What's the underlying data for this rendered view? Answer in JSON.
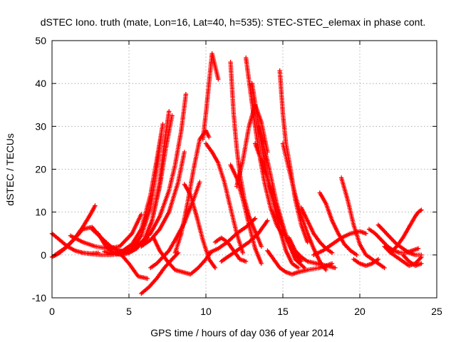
{
  "chart_data": {
    "type": "scatter",
    "title": "dSTEC Iono. truth (mate, Lon=16, Lat=40, h=535): STEC-STEC_elemax in phase cont.",
    "xlabel": "GPS time / hours of day 036 of year 2014",
    "ylabel": "dSTEC  / TECUs",
    "xlim": [
      0,
      25
    ],
    "ylim": [
      -10,
      50
    ],
    "x_ticks": [
      "0",
      "5",
      "10",
      "15",
      "20",
      "25"
    ],
    "y_ticks": [
      "-10",
      "0",
      "10",
      "20",
      "30",
      "40",
      "50"
    ],
    "grid": true,
    "marker": "+",
    "color": "#ff0000",
    "arcs": [
      {
        "x": [
          0.0,
          0.5,
          1.0,
          1.5,
          2.0,
          2.5,
          2.8
        ],
        "y": [
          -0.5,
          0.5,
          2.0,
          4.0,
          6.5,
          9.5,
          11.5
        ]
      },
      {
        "x": [
          0.0,
          0.5,
          1.0,
          1.5,
          2.0,
          2.5,
          3.0
        ],
        "y": [
          5.0,
          3.5,
          2.0,
          1.0,
          0.5,
          0.3,
          0.5
        ]
      },
      {
        "x": [
          0.2,
          0.8,
          1.4,
          2.0,
          2.6,
          3.2,
          3.8,
          4.4,
          5.0
        ],
        "y": [
          0.0,
          1.5,
          3.5,
          6.0,
          6.5,
          4.0,
          2.0,
          1.0,
          0.5
        ]
      },
      {
        "x": [
          2.6,
          3.2,
          3.8,
          4.4,
          5.0,
          5.6,
          6.2
        ],
        "y": [
          6.0,
          4.0,
          2.0,
          0.5,
          -2.0,
          -5.0,
          -5.5
        ]
      },
      {
        "x": [
          1.2,
          2.0,
          2.8,
          3.6,
          4.4,
          5.2,
          5.8
        ],
        "y": [
          4.5,
          3.0,
          2.0,
          1.5,
          2.0,
          5.0,
          9.5
        ]
      },
      {
        "x": [
          3.0,
          3.5,
          4.0,
          4.5,
          5.0,
          5.5,
          6.0,
          6.5,
          7.0,
          7.3,
          7.6
        ],
        "y": [
          5.0,
          2.0,
          0.5,
          0.0,
          0.5,
          1.5,
          3.5,
          8.0,
          17.0,
          26.0,
          33.5
        ]
      },
      {
        "x": [
          4.0,
          4.6,
          5.2,
          5.8,
          6.4,
          6.8,
          7.2
        ],
        "y": [
          0.5,
          1.0,
          2.5,
          6.0,
          14.0,
          22.0,
          30.5
        ]
      },
      {
        "x": [
          3.4,
          4.0,
          4.6,
          5.2,
          5.8,
          6.4,
          6.8,
          7.1
        ],
        "y": [
          0.8,
          0.2,
          0.5,
          1.5,
          4.5,
          11.0,
          20.0,
          28.0
        ]
      },
      {
        "x": [
          5.0,
          5.5,
          6.0,
          6.5,
          7.0,
          7.4,
          7.8
        ],
        "y": [
          0.5,
          1.5,
          3.5,
          8.0,
          16.0,
          25.0,
          32.5
        ]
      },
      {
        "x": [
          5.2,
          5.8,
          6.4,
          7.0,
          7.6,
          8.0,
          8.4,
          8.7
        ],
        "y": [
          2.0,
          3.0,
          5.0,
          9.0,
          15.0,
          21.0,
          29.0,
          37.5
        ]
      },
      {
        "x": [
          5.8,
          6.3,
          6.8,
          7.3,
          7.8,
          8.2
        ],
        "y": [
          -9.0,
          -7.5,
          -5.5,
          -3.0,
          -1.0,
          0.5
        ]
      },
      {
        "x": [
          5.8,
          6.4,
          7.0,
          7.6,
          8.2,
          8.6
        ],
        "y": [
          2.0,
          3.5,
          6.0,
          10.0,
          17.0,
          24.0
        ]
      },
      {
        "x": [
          6.6,
          7.0,
          7.5,
          8.0,
          8.5,
          9.0,
          9.5,
          10.0,
          10.3
        ],
        "y": [
          4.0,
          1.0,
          -1.5,
          -3.5,
          -4.0,
          -4.5,
          -3.0,
          -1.0,
          0.5
        ]
      },
      {
        "x": [
          8.0,
          8.4,
          8.8,
          9.2,
          9.6,
          10.0,
          10.2
        ],
        "y": [
          0.5,
          5.0,
          12.0,
          20.0,
          27.0,
          29.0,
          27.5
        ]
      },
      {
        "x": [
          8.6,
          9.0,
          9.4,
          9.8,
          10.2,
          10.6
        ],
        "y": [
          16.5,
          14.0,
          9.0,
          3.5,
          -1.0,
          -3.0
        ]
      },
      {
        "x": [
          9.8,
          10.0,
          10.2,
          10.4,
          10.6,
          10.8
        ],
        "y": [
          27.0,
          33.0,
          40.0,
          47.0,
          44.0,
          41.0
        ]
      },
      {
        "x": [
          10.0,
          10.4,
          10.8,
          11.2,
          11.6,
          12.0,
          12.4
        ],
        "y": [
          26.0,
          24.0,
          21.5,
          17.0,
          11.0,
          5.0,
          0.5
        ]
      },
      {
        "x": [
          10.2,
          10.8,
          11.4,
          12.0,
          12.6,
          13.2
        ],
        "y": [
          0.5,
          1.5,
          3.0,
          5.0,
          6.5,
          8.5
        ]
      },
      {
        "x": [
          10.6,
          11.0,
          11.4,
          11.8,
          12.2,
          12.6
        ],
        "y": [
          3.0,
          4.0,
          3.0,
          1.0,
          -1.0,
          -1.5
        ]
      },
      {
        "x": [
          11.6,
          11.8,
          12.0,
          12.2,
          12.5,
          12.8,
          13.2,
          13.6
        ],
        "y": [
          45.0,
          33.0,
          25.0,
          19.0,
          13.0,
          9.0,
          5.5,
          2.0
        ]
      },
      {
        "x": [
          11.6,
          12.0,
          12.4,
          12.8,
          13.2,
          13.6
        ],
        "y": [
          21.0,
          18.0,
          13.0,
          7.0,
          1.5,
          -2.0
        ]
      },
      {
        "x": [
          11.0,
          11.6,
          12.2,
          12.8,
          13.4,
          14.0
        ],
        "y": [
          -1.5,
          0.0,
          1.5,
          3.0,
          5.0,
          8.0
        ]
      },
      {
        "x": [
          12.6,
          12.9,
          13.2,
          13.5,
          13.8,
          14.2,
          14.6,
          15.0
        ],
        "y": [
          46.0,
          38.0,
          30.0,
          23.0,
          17.0,
          11.0,
          7.0,
          4.5
        ]
      },
      {
        "x": [
          12.0,
          12.4,
          12.8,
          13.2,
          13.6,
          14.0
        ],
        "y": [
          16.0,
          22.0,
          30.0,
          35.0,
          31.0,
          24.0
        ]
      },
      {
        "x": [
          13.0,
          13.3,
          13.6,
          14.0,
          14.4,
          14.8,
          15.2,
          15.6,
          16.0
        ],
        "y": [
          40.0,
          33.0,
          26.0,
          18.0,
          12.0,
          6.0,
          1.0,
          -2.0,
          -3.0
        ]
      },
      {
        "x": [
          13.2,
          13.6,
          14.0,
          14.4,
          14.8,
          15.2,
          15.6,
          16.2
        ],
        "y": [
          26.0,
          22.0,
          18.0,
          13.0,
          8.0,
          4.0,
          1.0,
          -1.5
        ]
      },
      {
        "x": [
          13.4,
          13.7,
          14.0,
          14.3,
          14.6,
          15.0,
          15.4,
          15.8,
          16.4
        ],
        "y": [
          30.0,
          26.0,
          22.0,
          17.0,
          12.0,
          7.0,
          2.5,
          -1.0,
          -3.0
        ]
      },
      {
        "x": [
          14.8,
          15.0,
          15.2,
          15.5,
          15.8,
          16.2,
          16.6
        ],
        "y": [
          43.0,
          33.0,
          26.0,
          20.0,
          13.0,
          7.0,
          3.0
        ]
      },
      {
        "x": [
          14.0,
          14.4,
          14.8,
          15.2,
          15.6,
          16.0,
          16.6,
          17.4,
          18.2
        ],
        "y": [
          1.0,
          -1.0,
          -3.0,
          -4.0,
          -4.5,
          -4.0,
          -3.5,
          -3.0,
          -2.0
        ]
      },
      {
        "x": [
          15.0,
          15.4,
          15.8,
          16.2,
          16.6,
          17.0,
          17.4,
          17.8
        ],
        "y": [
          26.0,
          20.0,
          14.0,
          9.0,
          5.0,
          1.5,
          -1.5,
          -3.5
        ]
      },
      {
        "x": [
          15.4,
          15.8,
          16.2,
          16.6,
          17.2,
          17.8,
          18.4
        ],
        "y": [
          4.0,
          1.0,
          -0.5,
          -1.5,
          -2.0,
          -2.5,
          -3.0
        ]
      },
      {
        "x": [
          16.2,
          16.6,
          17.0,
          17.4,
          17.8,
          18.2
        ],
        "y": [
          11.0,
          8.0,
          5.0,
          3.0,
          1.5,
          0.5
        ]
      },
      {
        "x": [
          17.4,
          17.8,
          18.2,
          18.6,
          19.0,
          19.4,
          19.8
        ],
        "y": [
          14.5,
          12.0,
          8.0,
          5.0,
          2.5,
          1.0,
          0.0
        ]
      },
      {
        "x": [
          18.8,
          19.2,
          19.6,
          20.0,
          20.4,
          20.8,
          21.2,
          21.6
        ],
        "y": [
          18.0,
          13.0,
          7.0,
          2.5,
          0.0,
          -1.0,
          -2.0,
          -3.0
        ]
      },
      {
        "x": [
          17.0,
          17.6,
          18.2,
          18.8,
          19.4,
          20.0,
          20.4
        ],
        "y": [
          0.0,
          1.0,
          2.5,
          4.0,
          5.0,
          5.5,
          5.0
        ]
      },
      {
        "x": [
          19.6,
          20.0,
          20.4,
          20.8,
          21.2
        ],
        "y": [
          -1.0,
          -2.0,
          -2.5,
          -2.0,
          -1.0
        ]
      },
      {
        "x": [
          20.6,
          21.0,
          21.4,
          21.8,
          22.2,
          22.6,
          23.0,
          23.4,
          23.8
        ],
        "y": [
          6.0,
          5.0,
          3.5,
          2.0,
          1.0,
          0.5,
          0.5,
          1.0,
          1.5
        ]
      },
      {
        "x": [
          21.2,
          21.6,
          22.0,
          22.4,
          22.8,
          23.2,
          23.6,
          24.0
        ],
        "y": [
          7.0,
          5.5,
          4.0,
          2.5,
          1.5,
          0.5,
          0.0,
          0.0
        ]
      },
      {
        "x": [
          21.6,
          22.0,
          22.4,
          22.8,
          23.2,
          23.6,
          24.0
        ],
        "y": [
          2.0,
          0.5,
          -0.5,
          -1.5,
          -2.5,
          -2.0,
          -0.5
        ]
      },
      {
        "x": [
          22.0,
          22.4,
          22.8,
          23.2,
          23.6,
          23.8,
          24.0
        ],
        "y": [
          0.5,
          2.0,
          4.0,
          6.5,
          9.0,
          10.0,
          10.5
        ]
      },
      {
        "x": [
          22.8,
          23.2,
          23.6,
          24.0
        ],
        "y": [
          0.0,
          -1.5,
          -2.5,
          -2.0
        ]
      },
      {
        "x": [
          2.0,
          2.6,
          3.2,
          3.8,
          4.4,
          5.0,
          5.6,
          6.2
        ],
        "y": [
          0.5,
          0.2,
          0.0,
          0.0,
          0.2,
          0.8,
          2.0,
          4.0
        ]
      },
      {
        "x": [
          6.4,
          6.8,
          7.2,
          7.6,
          8.0,
          8.6,
          9.2,
          9.6
        ],
        "y": [
          -3.0,
          -2.0,
          -0.5,
          1.0,
          3.5,
          7.5,
          13.0,
          17.0
        ]
      }
    ]
  }
}
